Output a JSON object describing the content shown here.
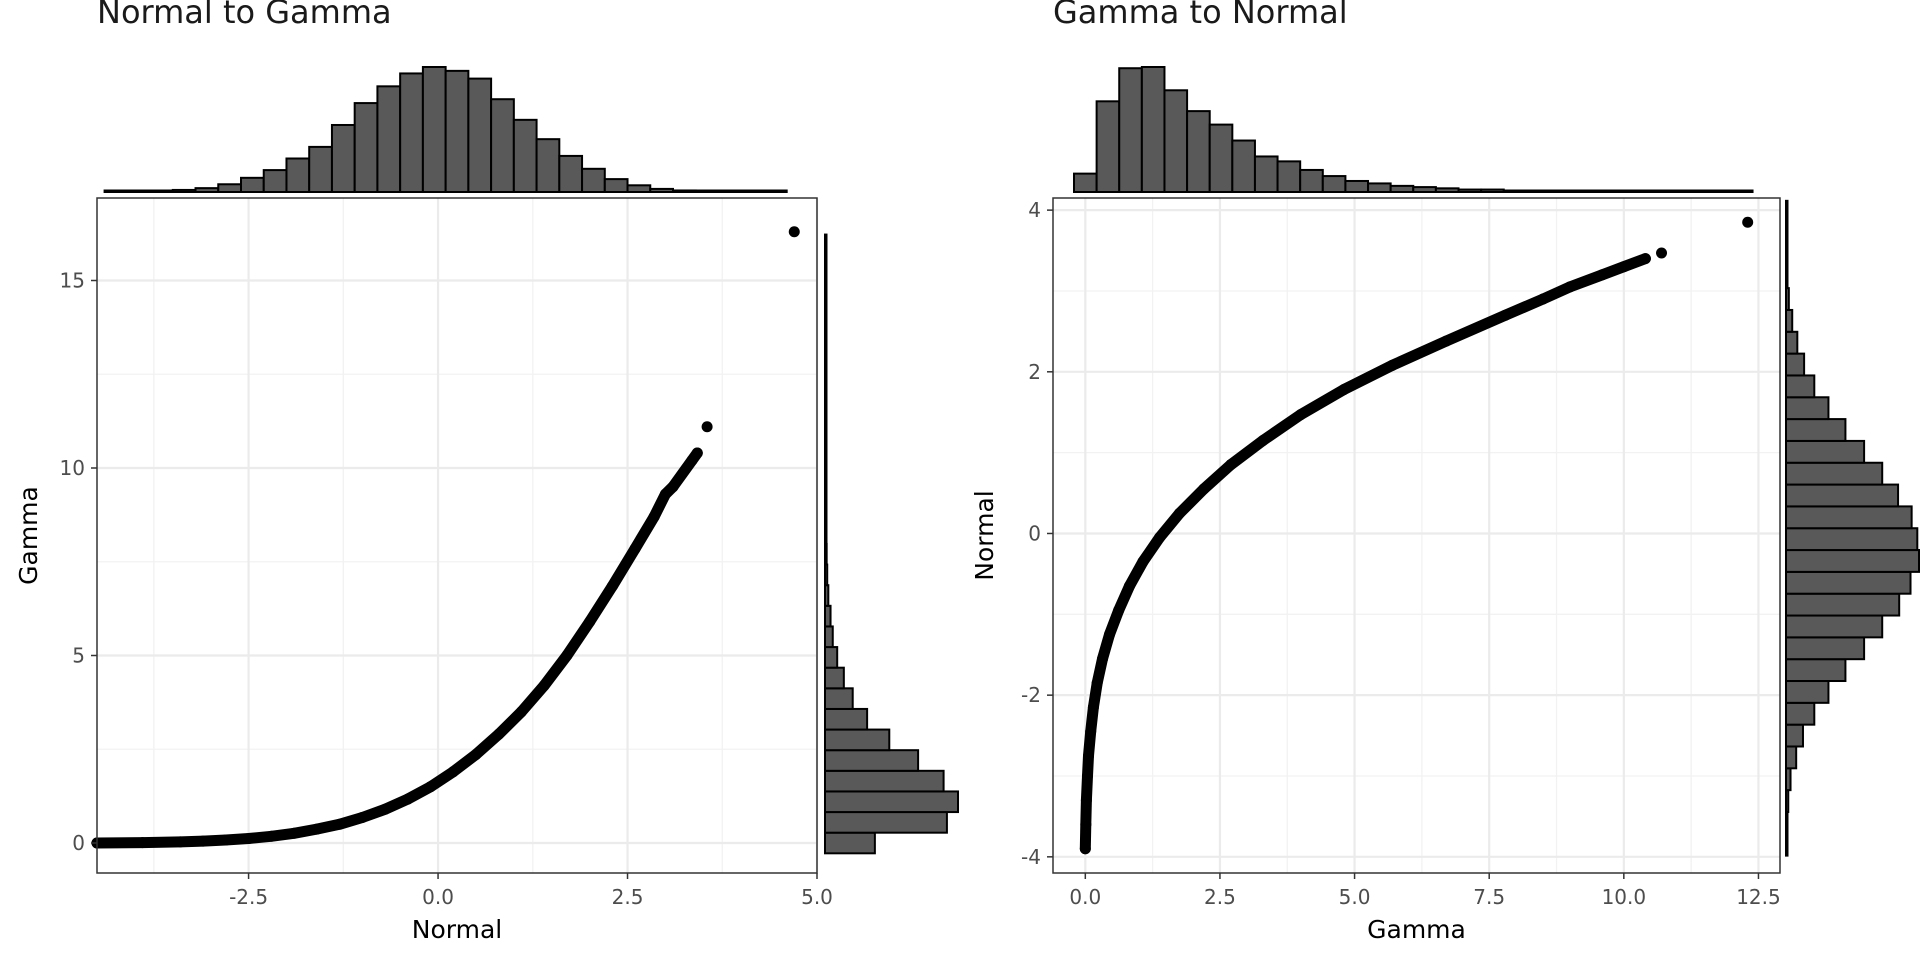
{
  "chart_data": [
    {
      "type": "scatter",
      "title": "Normal to Gamma",
      "xlabel": "Normal",
      "ylabel": "Gamma",
      "xlim": [
        -4.5,
        5.0
      ],
      "ylim": [
        -0.8,
        17.2
      ],
      "xticks": [
        -2.5,
        0.0,
        2.5,
        5.0
      ],
      "xtick_labels": [
        "-2.5",
        "0.0",
        "2.5",
        "5.0"
      ],
      "yticks": [
        0,
        5,
        10,
        15
      ],
      "ytick_labels": [
        "0",
        "5",
        "10",
        "15"
      ],
      "grid": true,
      "points": [
        [
          -4.5,
          0.0
        ],
        [
          -3.9,
          0.01
        ],
        [
          -3.4,
          0.03
        ],
        [
          -3.1,
          0.05
        ],
        [
          -2.8,
          0.08
        ],
        [
          -2.5,
          0.12
        ],
        [
          -2.2,
          0.18
        ],
        [
          -1.9,
          0.26
        ],
        [
          -1.6,
          0.37
        ],
        [
          -1.3,
          0.5
        ],
        [
          -1.0,
          0.68
        ],
        [
          -0.7,
          0.9
        ],
        [
          -0.4,
          1.17
        ],
        [
          -0.1,
          1.5
        ],
        [
          0.2,
          1.9
        ],
        [
          0.5,
          2.36
        ],
        [
          0.8,
          2.9
        ],
        [
          1.1,
          3.5
        ],
        [
          1.4,
          4.2
        ],
        [
          1.7,
          5.0
        ],
        [
          2.0,
          5.9
        ],
        [
          2.3,
          6.85
        ],
        [
          2.6,
          7.85
        ],
        [
          2.85,
          8.7
        ],
        [
          3.0,
          9.3
        ],
        [
          3.1,
          9.5
        ],
        [
          3.35,
          10.2
        ],
        [
          3.42,
          10.4
        ],
        [
          3.55,
          11.1
        ],
        [
          4.7,
          16.3
        ]
      ],
      "marginal_x": {
        "bins": [
          -4.25,
          -3.95,
          -3.65,
          -3.35,
          -3.05,
          -2.75,
          -2.45,
          -2.15,
          -1.85,
          -1.55,
          -1.25,
          -0.95,
          -0.65,
          -0.35,
          -0.05,
          0.25,
          0.55,
          0.85,
          1.15,
          1.45,
          1.75,
          2.05,
          2.35,
          2.65,
          2.95,
          3.25,
          3.55,
          3.85,
          4.15,
          4.45
        ],
        "counts": [
          1,
          2,
          4,
          8,
          15,
          30,
          55,
          85,
          130,
          175,
          260,
          345,
          410,
          460,
          485,
          470,
          440,
          360,
          280,
          205,
          140,
          90,
          50,
          26,
          12,
          6,
          3,
          2,
          1,
          1
        ]
      },
      "marginal_y": {
        "bins": [
          0.0,
          0.55,
          1.1,
          1.65,
          2.2,
          2.75,
          3.3,
          3.85,
          4.4,
          4.95,
          5.5,
          6.05,
          6.6,
          7.15,
          7.7,
          8.25,
          8.8,
          9.35,
          9.9,
          10.45,
          11.0,
          11.55,
          12.1,
          12.65,
          13.2,
          13.75,
          14.3,
          14.85,
          15.4,
          15.95
        ],
        "counts": [
          45,
          110,
          120,
          107,
          84,
          58,
          38,
          25,
          17,
          11,
          7,
          5,
          3,
          2,
          1.5,
          1,
          1,
          0.5,
          0.5,
          0.3,
          0.3,
          0.2,
          0.2,
          0.1,
          0.1,
          0.1,
          0.1,
          0.1,
          0.1,
          0.2
        ]
      }
    },
    {
      "type": "scatter",
      "title": "Gamma to Normal",
      "xlabel": "Gamma",
      "ylabel": "Normal",
      "xlim": [
        -0.6,
        12.9
      ],
      "ylim": [
        -4.2,
        4.15
      ],
      "xticks": [
        0.0,
        2.5,
        5.0,
        7.5,
        10.0,
        12.5
      ],
      "xtick_labels": [
        "0.0",
        "2.5",
        "5.0",
        "7.5",
        "10.0",
        "12.5"
      ],
      "yticks": [
        -4,
        -2,
        0,
        2,
        4
      ],
      "ytick_labels": [
        "-4",
        "-2",
        "0",
        "2",
        "4"
      ],
      "grid": true,
      "points": [
        [
          0.0,
          -3.9
        ],
        [
          0.01,
          -3.6
        ],
        [
          0.02,
          -3.3
        ],
        [
          0.04,
          -3.0
        ],
        [
          0.06,
          -2.75
        ],
        [
          0.1,
          -2.45
        ],
        [
          0.15,
          -2.15
        ],
        [
          0.22,
          -1.85
        ],
        [
          0.32,
          -1.55
        ],
        [
          0.45,
          -1.25
        ],
        [
          0.62,
          -0.95
        ],
        [
          0.82,
          -0.65
        ],
        [
          1.07,
          -0.35
        ],
        [
          1.38,
          -0.05
        ],
        [
          1.75,
          0.25
        ],
        [
          2.2,
          0.55
        ],
        [
          2.7,
          0.85
        ],
        [
          3.3,
          1.15
        ],
        [
          4.0,
          1.47
        ],
        [
          4.8,
          1.78
        ],
        [
          5.7,
          2.08
        ],
        [
          6.7,
          2.38
        ],
        [
          7.8,
          2.7
        ],
        [
          8.5,
          2.9
        ],
        [
          9.0,
          3.05
        ],
        [
          9.6,
          3.2
        ],
        [
          10.0,
          3.3
        ],
        [
          10.4,
          3.4
        ],
        [
          10.7,
          3.47
        ],
        [
          12.3,
          3.85
        ]
      ],
      "marginal_x": {
        "bins": [
          0.0,
          0.42,
          0.84,
          1.26,
          1.68,
          2.1,
          2.52,
          2.94,
          3.36,
          3.78,
          4.2,
          4.62,
          5.04,
          5.46,
          5.88,
          6.3,
          6.72,
          7.14,
          7.56,
          7.98,
          8.4,
          8.82,
          9.24,
          9.66,
          10.08,
          10.5,
          10.92,
          11.34,
          11.76,
          12.18
        ],
        "counts": [
          15,
          74,
          101,
          102,
          83,
          66,
          55,
          42,
          29,
          25,
          18,
          13,
          9,
          7,
          5,
          4,
          3,
          2,
          2,
          1,
          1,
          1,
          0.5,
          0.5,
          0.5,
          0.5,
          0.3,
          0.3,
          0.2,
          0.2
        ]
      },
      "marginal_y": {
        "bins": [
          -3.85,
          -3.58,
          -3.31,
          -3.04,
          -2.77,
          -2.5,
          -2.23,
          -1.96,
          -1.69,
          -1.42,
          -1.15,
          -0.88,
          -0.61,
          -0.34,
          -0.07,
          0.2,
          0.47,
          0.74,
          1.01,
          1.28,
          1.55,
          1.82,
          2.09,
          2.36,
          2.63,
          2.9,
          3.17,
          3.44,
          3.71,
          3.98
        ],
        "counts": [
          1,
          2,
          4,
          8,
          18,
          30,
          50,
          75,
          105,
          138,
          170,
          200,
          220,
          235,
          232,
          222,
          198,
          170,
          138,
          105,
          75,
          50,
          32,
          20,
          11,
          5,
          2,
          1,
          0.5,
          0.2
        ]
      }
    }
  ]
}
